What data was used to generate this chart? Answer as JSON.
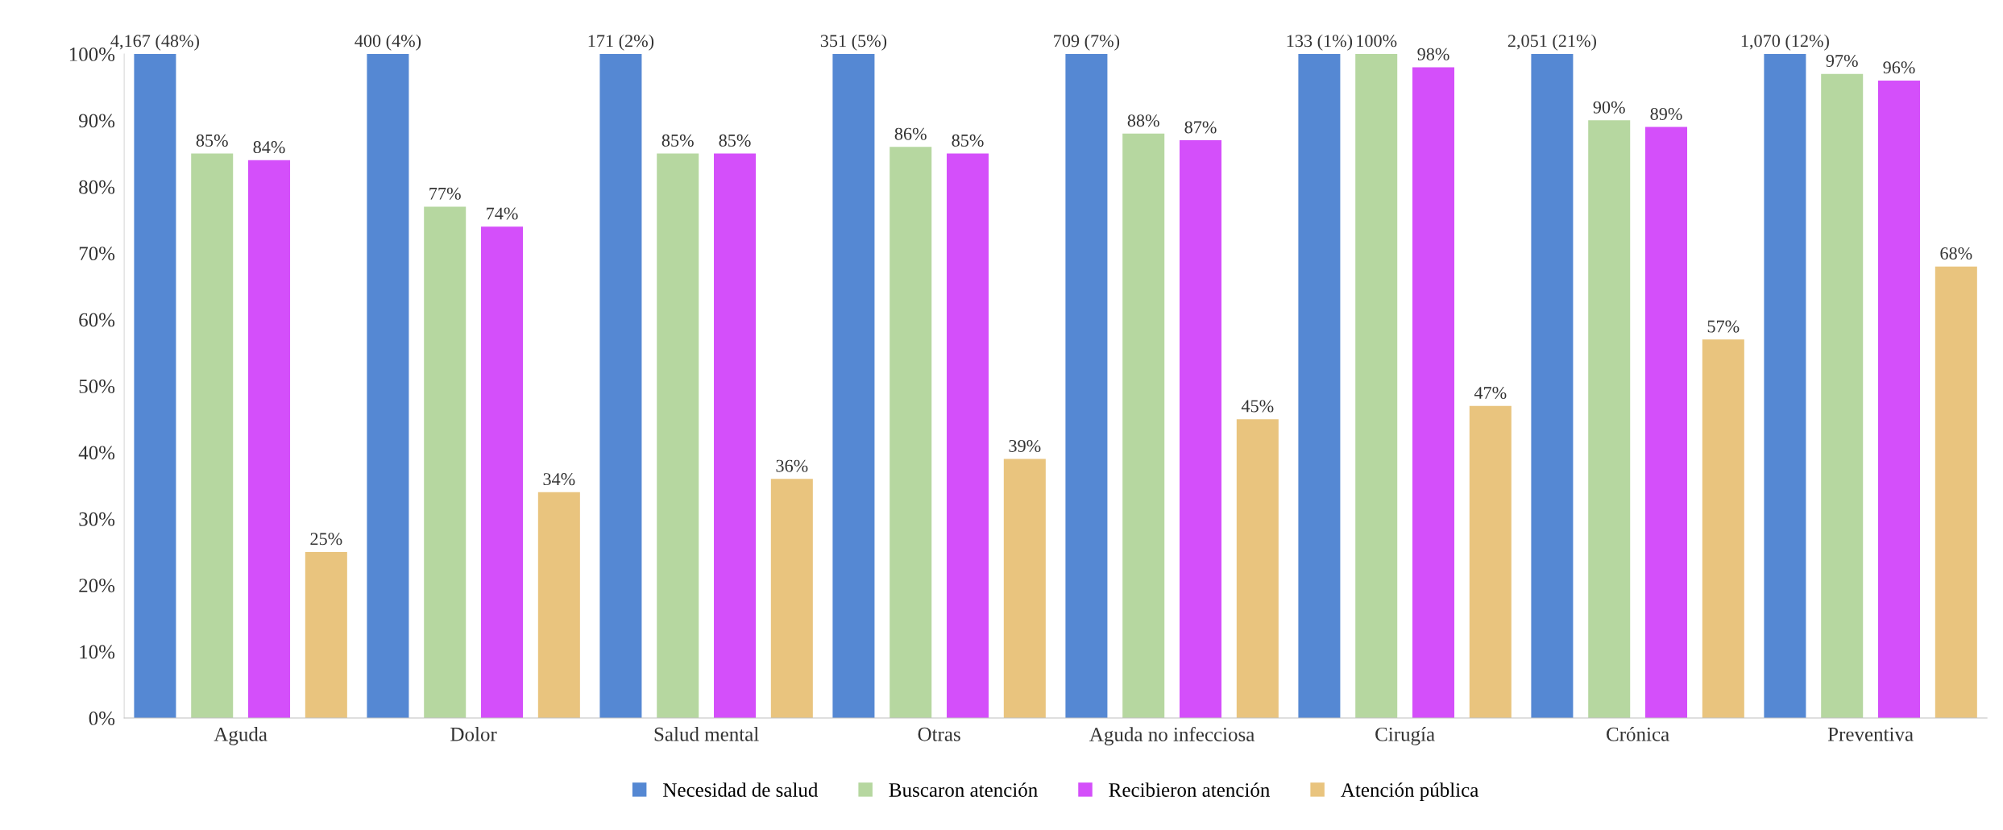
{
  "chart_data": {
    "type": "bar",
    "categories": [
      "Aguda",
      "Dolor",
      "Salud mental",
      "Otras",
      "Aguda no infecciosa",
      "Cirugía",
      "Crónica",
      "Preventiva"
    ],
    "series": [
      {
        "name": "Necesidad de salud",
        "color": "#5588d3",
        "values": [
          100,
          100,
          100,
          100,
          100,
          100,
          100,
          100
        ]
      },
      {
        "name": "Buscaron atención",
        "color": "#b6d7a0",
        "values": [
          85,
          77,
          85,
          86,
          88,
          100,
          90,
          97
        ],
        "value_labels": [
          "85%",
          "77%",
          "85%",
          "86%",
          "88%",
          "100%",
          "90%",
          "97%"
        ]
      },
      {
        "name": "Recibieron atención",
        "color": "#d44ffa",
        "values": [
          84,
          74,
          85,
          85,
          87,
          98,
          89,
          96
        ],
        "value_labels": [
          "84%",
          "74%",
          "85%",
          "85%",
          "87%",
          "98%",
          "89%",
          "96%"
        ]
      },
      {
        "name": "Atención pública",
        "color": "#e9c47e",
        "values": [
          25,
          34,
          36,
          39,
          45,
          47,
          57,
          68
        ],
        "value_labels": [
          "25%",
          "34%",
          "36%",
          "39%",
          "45%",
          "47%",
          "57%",
          "68%"
        ]
      }
    ],
    "ylim": [
      0,
      100
    ],
    "yticks": [
      {
        "value": 0,
        "label": "0%"
      },
      {
        "value": 10,
        "label": "10%"
      },
      {
        "value": 20,
        "label": "20%"
      },
      {
        "value": 30,
        "label": "30%"
      },
      {
        "value": 40,
        "label": "40%"
      },
      {
        "value": 50,
        "label": "50%"
      },
      {
        "value": 60,
        "label": "60%"
      },
      {
        "value": 70,
        "label": "70%"
      },
      {
        "value": 80,
        "label": "80%"
      },
      {
        "value": 90,
        "label": "90%"
      },
      {
        "value": 100,
        "label": "100%"
      }
    ],
    "annotations": [
      "4,167 (48%)",
      "400 (4%)",
      "171 (2%)",
      "351 (5%)",
      "709 (7%)",
      "133 (1%)",
      "2,051 (21%)",
      "1,070 (12%)"
    ],
    "grid": false,
    "legend": "bottom"
  }
}
